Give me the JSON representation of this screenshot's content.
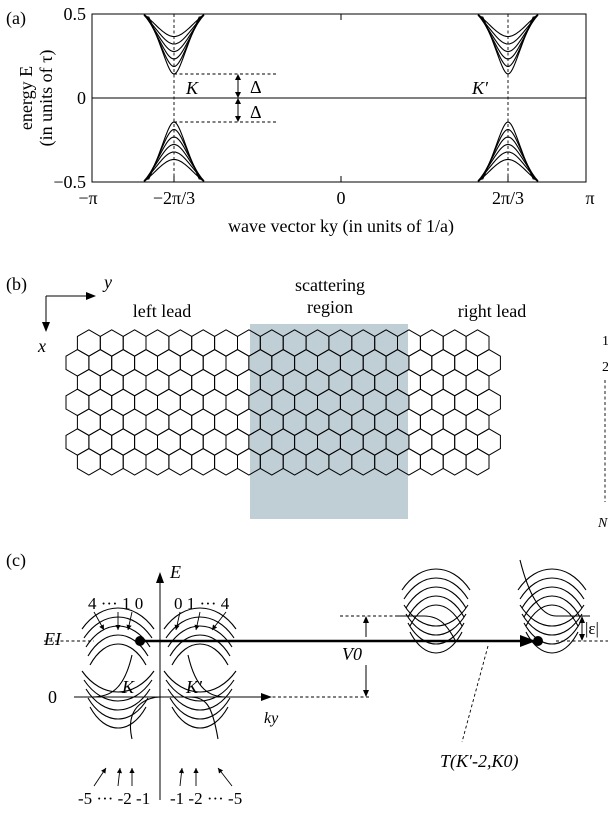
{
  "panel_a": {
    "label": "(a)",
    "ylabel_line1": "energy E",
    "ylabel_line2": "(in units of τ)",
    "xlabel": "wave vector  ky  (in units of 1/a)",
    "y_ticks": [
      "0.5",
      "0",
      "−0.5"
    ],
    "x_ticks": [
      "−π",
      "−2π/3",
      "0",
      "2π/3",
      "π"
    ],
    "valley_K": "K",
    "valley_Kp": "K′",
    "gap_label_upper": "Δ",
    "gap_label_lower": "Δ"
  },
  "panel_b": {
    "label": "(b)",
    "axis_y": "y",
    "axis_x": "x",
    "left_lead": "left lead",
    "scattering_line1": "scattering",
    "scattering_line2": "region",
    "right_lead": "right lead",
    "row_first": "1",
    "row_second": "2",
    "row_last": "N",
    "scattering_color": "#c0ced6"
  },
  "panel_c": {
    "label": "(c)",
    "energy_axis": "E",
    "momentum_axis": "ky",
    "fermi_level": "EI",
    "zero": "0",
    "valley_K": "K",
    "valley_Kp": "K′",
    "left_upper_indices": "4 ··· 1  0",
    "right_upper_indices": "0  1 ··· 4",
    "left_lower_indices": "-5 ··· -2 -1",
    "right_lower_indices": "-1 -2 ··· -5",
    "potential": "V0",
    "epsilon": "|ε|",
    "transmission": "T(K′-2,K0)"
  }
}
